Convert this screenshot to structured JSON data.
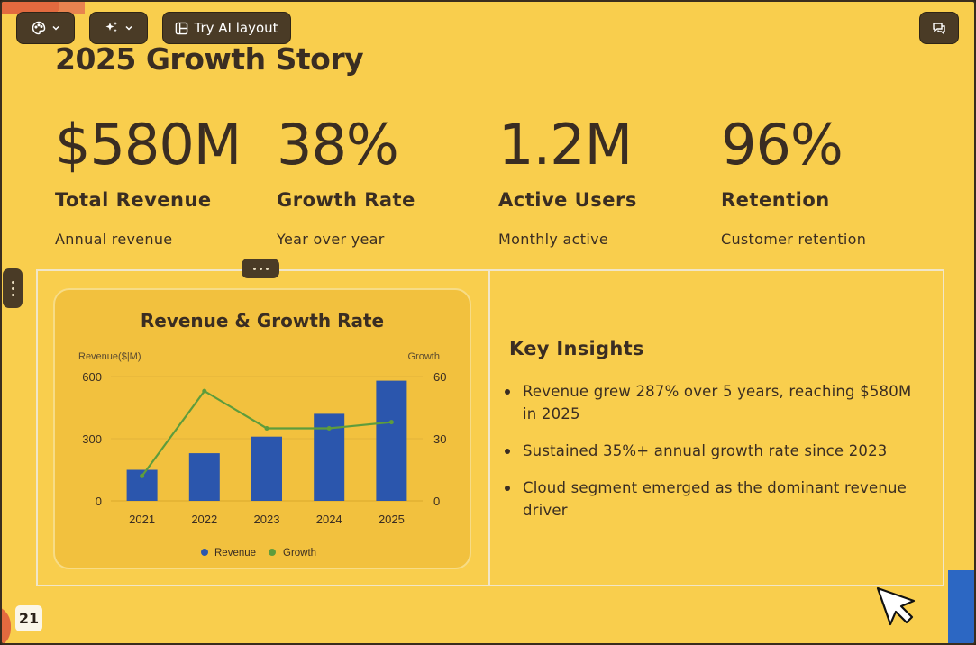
{
  "toolbar": {
    "theme_icon": "palette-icon",
    "magic_icon": "sparkle-icon",
    "ai_layout_label": "Try AI layout",
    "ai_layout_icon": "layout-icon",
    "comment_icon": "comment-icon"
  },
  "slide": {
    "title": "2025 Growth Story",
    "page_number": "21",
    "stats": [
      {
        "value": "$580M",
        "label": "Total Revenue",
        "sub": "Annual revenue"
      },
      {
        "value": "38%",
        "label": "Growth Rate",
        "sub": "Year over year"
      },
      {
        "value": "1.2M",
        "label": "Active Users",
        "sub": "Monthly active"
      },
      {
        "value": "96%",
        "label": "Retention",
        "sub": "Customer retention"
      }
    ],
    "insights": {
      "title": "Key Insights",
      "items": [
        "Revenue grew 287% over 5 years, reaching $580M in 2025",
        "Sustained 35%+ annual growth rate since 2023",
        "Cloud segment emerged as the dominant revenue driver"
      ]
    }
  },
  "colors": {
    "background": "#f9ce4d",
    "text": "#3a2d22",
    "bar": "#2b56ad",
    "line": "#5e9c3c",
    "toolbar": "#4a3b26"
  },
  "chart_data": {
    "type": "bar",
    "title": "Revenue & Growth Rate",
    "categories": [
      "2021",
      "2022",
      "2023",
      "2024",
      "2025"
    ],
    "ylabel": "Revenue($|M)",
    "y2label": "Growth",
    "ylim": [
      0,
      600
    ],
    "y2lim": [
      0,
      60
    ],
    "yticks": [
      "0",
      "300",
      "600"
    ],
    "y2ticks": [
      "0",
      "30",
      "60"
    ],
    "grid": true,
    "legend_position": "bottom",
    "series": [
      {
        "name": "Revenue",
        "type": "bar",
        "axis": "left",
        "values": [
          150,
          230,
          310,
          420,
          580
        ]
      },
      {
        "name": "Growth",
        "type": "line",
        "axis": "right",
        "values": [
          12,
          53,
          35,
          35,
          38
        ]
      }
    ]
  }
}
